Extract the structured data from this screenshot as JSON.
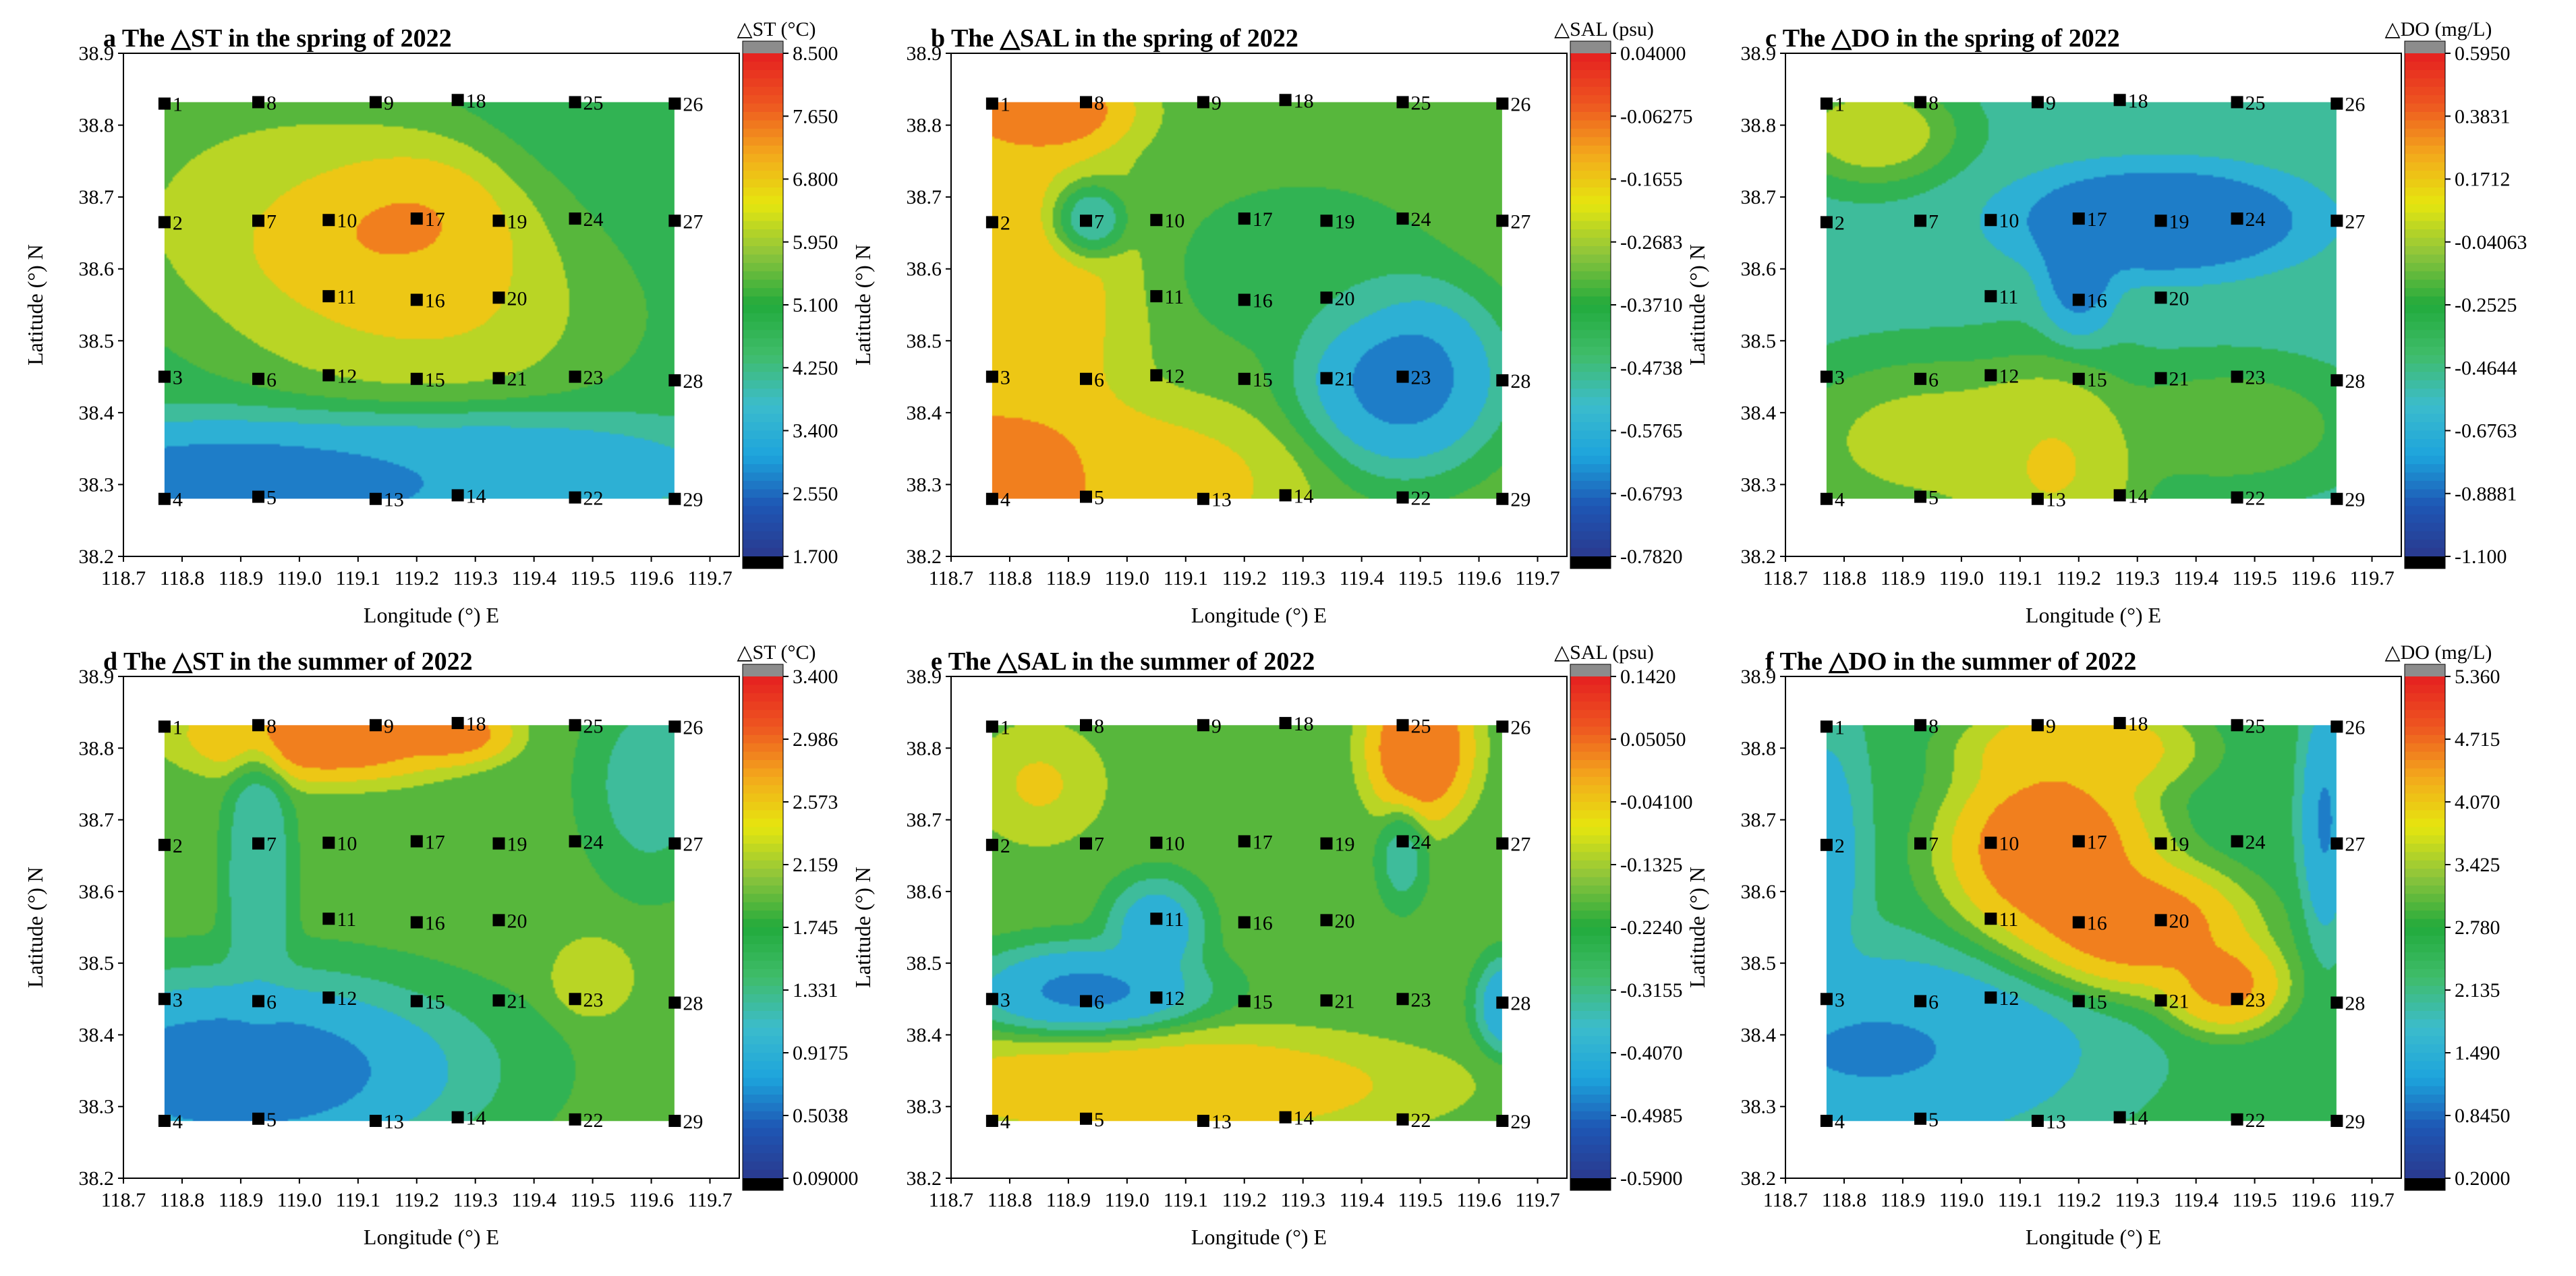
{
  "figure": {
    "axes": {
      "xlabel": "Longitude (°) E",
      "ylabel": "Latitude (°) N",
      "xticks": [
        "118.7",
        "118.8",
        "118.9",
        "119.0",
        "119.1",
        "119.2",
        "119.3",
        "119.4",
        "119.5",
        "119.6",
        "119.7"
      ],
      "yticks": [
        "38.2",
        "38.3",
        "38.4",
        "38.5",
        "38.6",
        "38.7",
        "38.8",
        "38.9"
      ],
      "xlim": [
        118.7,
        119.75
      ],
      "ylim": [
        38.2,
        38.9
      ]
    },
    "stations": [
      {
        "id": "1",
        "lon": 118.77,
        "lat": 38.83
      },
      {
        "id": "2",
        "lon": 118.77,
        "lat": 38.665
      },
      {
        "id": "3",
        "lon": 118.77,
        "lat": 38.45
      },
      {
        "id": "4",
        "lon": 118.77,
        "lat": 38.28
      },
      {
        "id": "5",
        "lon": 118.93,
        "lat": 38.283
      },
      {
        "id": "6",
        "lon": 118.93,
        "lat": 38.447
      },
      {
        "id": "7",
        "lon": 118.93,
        "lat": 38.667
      },
      {
        "id": "8",
        "lon": 118.93,
        "lat": 38.832
      },
      {
        "id": "9",
        "lon": 119.13,
        "lat": 38.832
      },
      {
        "id": "10",
        "lon": 119.05,
        "lat": 38.668
      },
      {
        "id": "11",
        "lon": 119.05,
        "lat": 38.562
      },
      {
        "id": "12",
        "lon": 119.05,
        "lat": 38.452
      },
      {
        "id": "13",
        "lon": 119.13,
        "lat": 38.28
      },
      {
        "id": "14",
        "lon": 119.27,
        "lat": 38.285
      },
      {
        "id": "15",
        "lon": 119.2,
        "lat": 38.447
      },
      {
        "id": "16",
        "lon": 119.2,
        "lat": 38.557
      },
      {
        "id": "17",
        "lon": 119.2,
        "lat": 38.67
      },
      {
        "id": "18",
        "lon": 119.27,
        "lat": 38.835
      },
      {
        "id": "19",
        "lon": 119.34,
        "lat": 38.667
      },
      {
        "id": "20",
        "lon": 119.34,
        "lat": 38.56
      },
      {
        "id": "21",
        "lon": 119.34,
        "lat": 38.448
      },
      {
        "id": "22",
        "lon": 119.47,
        "lat": 38.282
      },
      {
        "id": "23",
        "lon": 119.47,
        "lat": 38.45
      },
      {
        "id": "24",
        "lon": 119.47,
        "lat": 38.67
      },
      {
        "id": "25",
        "lon": 119.47,
        "lat": 38.832
      },
      {
        "id": "26",
        "lon": 119.64,
        "lat": 38.83
      },
      {
        "id": "27",
        "lon": 119.64,
        "lat": 38.667
      },
      {
        "id": "28",
        "lon": 119.64,
        "lat": 38.445
      },
      {
        "id": "29",
        "lon": 119.64,
        "lat": 38.28
      }
    ],
    "colors": {
      "scale": [
        "#2a3a8f",
        "#1e56b4",
        "#1da4dc",
        "#3cbccc",
        "#3fbc6a",
        "#22aa3c",
        "#8cc43c",
        "#e6e60e",
        "#f3a81c",
        "#ee5520",
        "#e52020"
      ],
      "top_cap": "#8c8c8c",
      "bottom_cap": "#000000",
      "marker": "#000000"
    }
  },
  "chart_data": [
    {
      "panel": "a",
      "type": "heatmap",
      "title": "The △ST in the spring of 2022",
      "colorbar_label": "△ST (°C)",
      "colorbar_ticks": [
        "8.500",
        "7.650",
        "6.800",
        "5.950",
        "5.100",
        "4.250",
        "3.400",
        "2.550",
        "1.700"
      ],
      "range": [
        1.7,
        8.5
      ],
      "blobs": [
        {
          "lon": 119.12,
          "lat": 38.66,
          "value": 8.2,
          "rx": 0.2,
          "ry": 0.08
        },
        {
          "lon": 119.22,
          "lat": 38.6,
          "value": 7.0,
          "rx": 0.28,
          "ry": 0.13
        },
        {
          "lon": 118.95,
          "lat": 38.7,
          "value": 6.0,
          "rx": 0.22,
          "ry": 0.12
        },
        {
          "lon": 118.9,
          "lat": 38.3,
          "value": 2.4,
          "rx": 0.35,
          "ry": 0.07
        },
        {
          "lon": 119.35,
          "lat": 38.32,
          "value": 3.0,
          "rx": 0.3,
          "ry": 0.06
        },
        {
          "lon": 119.55,
          "lat": 38.75,
          "value": 4.6,
          "rx": 0.18,
          "ry": 0.2
        }
      ],
      "base_value": 4.8
    },
    {
      "panel": "b",
      "type": "heatmap",
      "title": "The △SAL in the spring of 2022",
      "colorbar_label": "△SAL (psu)",
      "colorbar_ticks": [
        "0.04000",
        "-0.06275",
        "-0.1655",
        "-0.2683",
        "-0.3710",
        "-0.4738",
        "-0.5765",
        "-0.6793",
        "-0.7820"
      ],
      "range": [
        -0.782,
        0.04
      ],
      "blobs": [
        {
          "lon": 118.78,
          "lat": 38.3,
          "value": -0.03,
          "rx": 0.2,
          "ry": 0.1
        },
        {
          "lon": 118.8,
          "lat": 38.55,
          "value": -0.12,
          "rx": 0.15,
          "ry": 0.2
        },
        {
          "lon": 118.85,
          "lat": 38.82,
          "value": -0.02,
          "rx": 0.12,
          "ry": 0.05
        },
        {
          "lon": 119.47,
          "lat": 38.45,
          "value": -0.7,
          "rx": 0.13,
          "ry": 0.1
        },
        {
          "lon": 118.93,
          "lat": 38.667,
          "value": -0.65,
          "rx": 0.05,
          "ry": 0.04
        },
        {
          "lon": 119.3,
          "lat": 38.6,
          "value": -0.45,
          "rx": 0.15,
          "ry": 0.08
        },
        {
          "lon": 119.05,
          "lat": 38.3,
          "value": -0.15,
          "rx": 0.18,
          "ry": 0.08
        }
      ],
      "base_value": -0.33
    },
    {
      "panel": "c",
      "type": "heatmap",
      "title": "The △DO in the spring of 2022",
      "colorbar_label": "△DO (mg/L)",
      "colorbar_ticks": [
        "0.5950",
        "0.3831",
        "0.1712",
        "-0.04063",
        "-0.2525",
        "-0.4644",
        "-0.6763",
        "-0.8881",
        "-1.100"
      ],
      "range": [
        -1.1,
        0.595
      ],
      "blobs": [
        {
          "lon": 119.34,
          "lat": 38.667,
          "value": -1.0,
          "rx": 0.2,
          "ry": 0.06
        },
        {
          "lon": 119.2,
          "lat": 38.6,
          "value": -0.9,
          "rx": 0.05,
          "ry": 0.07
        },
        {
          "lon": 119.15,
          "lat": 38.33,
          "value": 0.2,
          "rx": 0.12,
          "ry": 0.1
        },
        {
          "lon": 118.95,
          "lat": 38.36,
          "value": 0.05,
          "rx": 0.18,
          "ry": 0.08
        },
        {
          "lon": 118.85,
          "lat": 38.79,
          "value": 0.1,
          "rx": 0.1,
          "ry": 0.05
        },
        {
          "lon": 119.45,
          "lat": 38.38,
          "value": -0.1,
          "rx": 0.15,
          "ry": 0.06
        }
      ],
      "base_value": -0.45
    },
    {
      "panel": "d",
      "type": "heatmap",
      "title": "The △ST in the summer of 2022",
      "colorbar_label": "△ST (°C)",
      "colorbar_ticks": [
        "3.400",
        "2.986",
        "2.573",
        "2.159",
        "1.745",
        "1.331",
        "0.9175",
        "0.5038",
        "0.09000"
      ],
      "range": [
        0.09,
        3.4
      ],
      "blobs": [
        {
          "lon": 119.05,
          "lat": 38.82,
          "value": 3.2,
          "rx": 0.18,
          "ry": 0.05
        },
        {
          "lon": 119.27,
          "lat": 38.82,
          "value": 3.0,
          "rx": 0.07,
          "ry": 0.03
        },
        {
          "lon": 118.9,
          "lat": 38.35,
          "value": 0.4,
          "rx": 0.3,
          "ry": 0.1
        },
        {
          "lon": 119.5,
          "lat": 38.48,
          "value": 2.5,
          "rx": 0.05,
          "ry": 0.04
        },
        {
          "lon": 119.6,
          "lat": 38.75,
          "value": 1.2,
          "rx": 0.08,
          "ry": 0.1
        },
        {
          "lon": 118.93,
          "lat": 38.62,
          "value": 1.0,
          "rx": 0.04,
          "ry": 0.15
        }
      ],
      "base_value": 1.85
    },
    {
      "panel": "e",
      "type": "heatmap",
      "title": "The △SAL in the summer of 2022",
      "colorbar_label": "△SAL (psu)",
      "colorbar_ticks": [
        "0.1420",
        "0.05050",
        "-0.04100",
        "-0.1325",
        "-0.2240",
        "-0.3155",
        "-0.4070",
        "-0.4985",
        "-0.5900"
      ],
      "range": [
        -0.59,
        0.142
      ],
      "blobs": [
        {
          "lon": 118.93,
          "lat": 38.46,
          "value": -0.5,
          "rx": 0.15,
          "ry": 0.05
        },
        {
          "lon": 119.05,
          "lat": 38.55,
          "value": -0.45,
          "rx": 0.06,
          "ry": 0.05
        },
        {
          "lon": 119.5,
          "lat": 38.8,
          "value": 0.1,
          "rx": 0.07,
          "ry": 0.08
        },
        {
          "lon": 119.05,
          "lat": 38.33,
          "value": 0.0,
          "rx": 0.35,
          "ry": 0.06
        },
        {
          "lon": 119.47,
          "lat": 38.65,
          "value": -0.35,
          "rx": 0.03,
          "ry": 0.05
        },
        {
          "lon": 119.65,
          "lat": 38.44,
          "value": -0.48,
          "rx": 0.04,
          "ry": 0.05
        },
        {
          "lon": 118.85,
          "lat": 38.75,
          "value": -0.05,
          "rx": 0.08,
          "ry": 0.06
        }
      ],
      "base_value": -0.2
    },
    {
      "panel": "f",
      "type": "heatmap",
      "title": "The △DO in the summer of 2022",
      "colorbar_label": "△DO (mg/L)",
      "colorbar_ticks": [
        "5.360",
        "4.715",
        "4.070",
        "3.425",
        "2.780",
        "2.135",
        "1.490",
        "0.8450",
        "0.2000"
      ],
      "range": [
        0.2,
        5.36
      ],
      "blobs": [
        {
          "lon": 119.15,
          "lat": 38.66,
          "value": 5.1,
          "rx": 0.14,
          "ry": 0.1
        },
        {
          "lon": 119.3,
          "lat": 38.55,
          "value": 5.0,
          "rx": 0.15,
          "ry": 0.07
        },
        {
          "lon": 119.45,
          "lat": 38.47,
          "value": 4.8,
          "rx": 0.08,
          "ry": 0.05
        },
        {
          "lon": 119.2,
          "lat": 38.8,
          "value": 4.5,
          "rx": 0.15,
          "ry": 0.05
        },
        {
          "lon": 118.85,
          "lat": 38.38,
          "value": 1.0,
          "rx": 0.28,
          "ry": 0.1
        },
        {
          "lon": 119.62,
          "lat": 38.7,
          "value": 1.0,
          "rx": 0.03,
          "ry": 0.12
        },
        {
          "lon": 118.77,
          "lat": 38.65,
          "value": 1.4,
          "rx": 0.05,
          "ry": 0.15
        }
      ],
      "base_value": 2.4
    }
  ]
}
